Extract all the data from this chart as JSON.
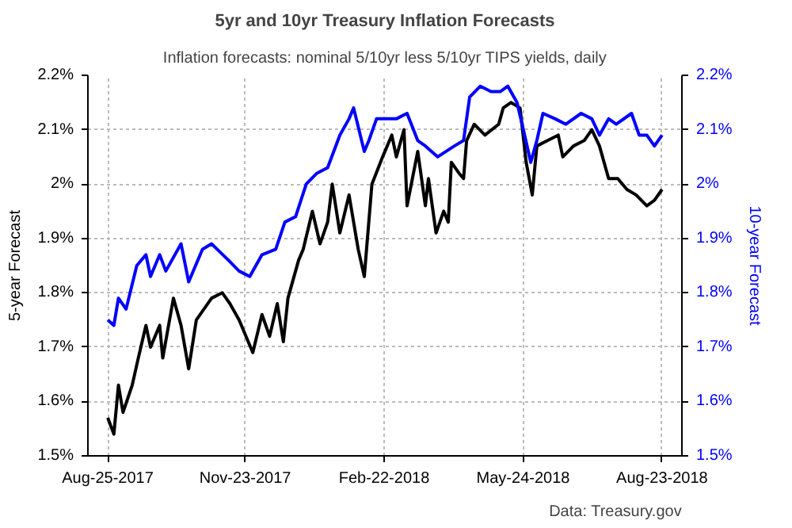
{
  "chart_data": {
    "type": "line",
    "title": "5yr and 10yr Treasury Inflation Forecasts",
    "subtitle": "Inflation forecasts: nominal 5/10yr less 5/10yr TIPS yields, daily",
    "ylabel": "5-year Forecast",
    "y2label": "10-year Forecast",
    "annotations": [
      "Data: Treasury.gov"
    ],
    "xlim": [
      "2017-08-12",
      "2018-09-05"
    ],
    "xticks": [
      {
        "value": "2017-08-25",
        "label": "Aug-25-2017"
      },
      {
        "value": "2017-11-23",
        "label": "Nov-23-2017"
      },
      {
        "value": "2018-02-22",
        "label": "Feb-22-2018"
      },
      {
        "value": "2018-05-24",
        "label": "May-24-2018"
      },
      {
        "value": "2018-08-23",
        "label": "Aug-23-2018"
      }
    ],
    "ylim": [
      1.5,
      2.2
    ],
    "yticks": [
      {
        "value": 1.5,
        "label": "1.5%"
      },
      {
        "value": 1.6,
        "label": "1.6%"
      },
      {
        "value": 1.7,
        "label": "1.7%"
      },
      {
        "value": 1.8,
        "label": "1.8%"
      },
      {
        "value": 1.9,
        "label": "1.9%"
      },
      {
        "value": 2.0,
        "label": "2%"
      },
      {
        "value": 2.1,
        "label": "2.1%"
      },
      {
        "value": 2.2,
        "label": "2.2%"
      }
    ],
    "y2lim": [
      1.5,
      2.2
    ],
    "y2ticks": [
      {
        "value": 1.5,
        "label": "1.5%"
      },
      {
        "value": 1.6,
        "label": "1.6%"
      },
      {
        "value": 1.7,
        "label": "1.7%"
      },
      {
        "value": 1.8,
        "label": "1.8%"
      },
      {
        "value": 1.9,
        "label": "1.9%"
      },
      {
        "value": 2.0,
        "label": "2%"
      },
      {
        "value": 2.1,
        "label": "2.1%"
      },
      {
        "value": 2.2,
        "label": "2.2%"
      }
    ],
    "grid": true,
    "line_style": "solid",
    "series": [
      {
        "color": "#000000",
        "x": [
          "2017-08-25",
          "2017-08-29",
          "2017-09-01",
          "2017-09-04",
          "2017-09-10",
          "2017-09-14",
          "2017-09-19",
          "2017-09-22",
          "2017-09-28",
          "2017-09-30",
          "2017-10-07",
          "2017-10-12",
          "2017-10-17",
          "2017-10-22",
          "2017-11-01",
          "2017-11-08",
          "2017-11-13",
          "2017-11-19",
          "2017-11-28",
          "2017-12-04",
          "2017-12-09",
          "2017-12-14",
          "2017-12-18",
          "2017-12-21",
          "2017-12-28",
          "2017-12-31",
          "2018-01-06",
          "2018-01-11",
          "2018-01-16",
          "2018-01-19",
          "2018-01-24",
          "2018-01-30",
          "2018-02-05",
          "2018-02-09",
          "2018-02-14",
          "2018-02-21",
          "2018-02-27",
          "2018-03-02",
          "2018-03-07",
          "2018-03-09",
          "2018-03-16",
          "2018-03-21",
          "2018-03-23",
          "2018-03-28",
          "2018-04-02",
          "2018-04-05",
          "2018-04-07",
          "2018-04-12",
          "2018-04-15",
          "2018-04-17",
          "2018-04-22",
          "2018-04-29",
          "2018-05-08",
          "2018-05-11",
          "2018-05-16",
          "2018-05-22",
          "2018-05-26",
          "2018-05-30",
          "2018-06-02",
          "2018-06-09",
          "2018-06-16",
          "2018-06-19",
          "2018-06-26",
          "2018-07-03",
          "2018-07-08",
          "2018-07-13",
          "2018-07-19",
          "2018-07-25",
          "2018-07-31",
          "2018-08-06",
          "2018-08-13",
          "2018-08-18",
          "2018-08-23"
        ],
        "values": [
          1.57,
          1.54,
          1.63,
          1.58,
          1.63,
          1.68,
          1.74,
          1.7,
          1.74,
          1.68,
          1.79,
          1.74,
          1.66,
          1.75,
          1.79,
          1.8,
          1.78,
          1.75,
          1.69,
          1.76,
          1.72,
          1.78,
          1.71,
          1.79,
          1.86,
          1.88,
          1.95,
          1.89,
          1.93,
          2.0,
          1.91,
          1.98,
          1.88,
          1.83,
          2.0,
          2.05,
          2.09,
          2.05,
          2.1,
          1.96,
          2.06,
          1.96,
          2.01,
          1.91,
          1.95,
          1.93,
          2.04,
          2.02,
          2.01,
          2.08,
          2.11,
          2.09,
          2.11,
          2.14,
          2.15,
          2.14,
          2.04,
          1.98,
          2.07,
          2.08,
          2.09,
          2.05,
          2.07,
          2.08,
          2.1,
          2.07,
          2.01,
          2.01,
          1.99,
          1.98,
          1.96,
          1.97,
          1.99
        ]
      },
      {
        "color": "#0000ff",
        "axis": "y2",
        "x": [
          "2017-08-25",
          "2017-08-29",
          "2017-09-01",
          "2017-09-06",
          "2017-09-13",
          "2017-09-19",
          "2017-09-22",
          "2017-09-28",
          "2017-10-02",
          "2017-10-12",
          "2017-10-17",
          "2017-10-26",
          "2017-11-01",
          "2017-11-12",
          "2017-11-19",
          "2017-11-26",
          "2017-12-04",
          "2017-12-13",
          "2017-12-19",
          "2017-12-26",
          "2018-01-02",
          "2018-01-09",
          "2018-01-16",
          "2018-01-24",
          "2018-01-30",
          "2018-02-02",
          "2018-02-09",
          "2018-02-12",
          "2018-02-17",
          "2018-02-27",
          "2018-03-02",
          "2018-03-09",
          "2018-03-16",
          "2018-03-21",
          "2018-03-29",
          "2018-04-09",
          "2018-04-15",
          "2018-04-19",
          "2018-04-26",
          "2018-05-03",
          "2018-05-09",
          "2018-05-14",
          "2018-05-20",
          "2018-05-25",
          "2018-05-29",
          "2018-06-02",
          "2018-06-06",
          "2018-06-14",
          "2018-06-21",
          "2018-07-01",
          "2018-07-08",
          "2018-07-13",
          "2018-07-19",
          "2018-07-24",
          "2018-08-03",
          "2018-08-08",
          "2018-08-13",
          "2018-08-18",
          "2018-08-23"
        ],
        "values": [
          1.75,
          1.74,
          1.79,
          1.77,
          1.85,
          1.87,
          1.83,
          1.87,
          1.84,
          1.89,
          1.82,
          1.88,
          1.89,
          1.86,
          1.84,
          1.83,
          1.87,
          1.88,
          1.93,
          1.94,
          2.0,
          2.02,
          2.03,
          2.09,
          2.12,
          2.14,
          2.06,
          2.08,
          2.12,
          2.12,
          2.12,
          2.13,
          2.08,
          2.07,
          2.05,
          2.07,
          2.08,
          2.16,
          2.18,
          2.17,
          2.17,
          2.18,
          2.15,
          2.09,
          2.04,
          2.08,
          2.13,
          2.12,
          2.11,
          2.13,
          2.12,
          2.09,
          2.12,
          2.11,
          2.13,
          2.09,
          2.09,
          2.07,
          2.09
        ]
      }
    ]
  }
}
